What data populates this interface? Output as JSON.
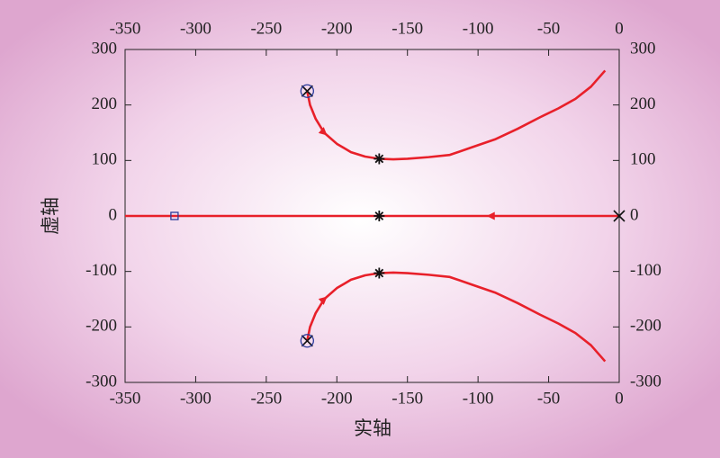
{
  "chart_data": {
    "type": "line",
    "xlabel": "实轴",
    "ylabel": "虚轴",
    "xlim": [
      -350,
      0
    ],
    "ylim": [
      -300,
      300
    ],
    "xticks": [
      -350,
      -300,
      -250,
      -200,
      -150,
      -100,
      -50,
      0
    ],
    "yticks": [
      -300,
      -200,
      -100,
      0,
      100,
      200,
      300
    ],
    "series": [
      {
        "color": "#e8202a",
        "line": true,
        "arrow": true,
        "x": [
          -221,
          -219,
          -215,
          -209,
          -200,
          -190,
          -180,
          -170,
          -160,
          -150,
          -135,
          -120,
          -104,
          -88,
          -72,
          -56,
          -43,
          -31,
          -20,
          -10
        ],
        "values": [
          225,
          200,
          175,
          150,
          130,
          115,
          107,
          103,
          102,
          103,
          106,
          110,
          124,
          138,
          157,
          178,
          194,
          211,
          233,
          262
        ]
      },
      {
        "color": "#e8202a",
        "line": true,
        "arrow": true,
        "x": [
          -221,
          -219,
          -215,
          -209,
          -200,
          -190,
          -180,
          -170,
          -160,
          -150,
          -135,
          -120,
          -104,
          -88,
          -72,
          -56,
          -43,
          -31,
          -20,
          -10
        ],
        "values": [
          -225,
          -200,
          -175,
          -150,
          -130,
          -115,
          -107,
          -103,
          -102,
          -103,
          -106,
          -110,
          -124,
          -138,
          -157,
          -178,
          -194,
          -211,
          -233,
          -262
        ]
      },
      {
        "color": "#e8202a",
        "line": true,
        "arrow": true,
        "x": [
          0,
          -350
        ],
        "values": [
          0,
          0
        ]
      },
      {
        "color": "#111111",
        "line": false,
        "marker": "x",
        "x": [
          -221,
          -221,
          0
        ],
        "values": [
          225,
          -225,
          0
        ]
      },
      {
        "color": "#2a3a9a",
        "line": false,
        "marker": "circle",
        "x": [
          -221,
          -221
        ],
        "values": [
          225,
          -225
        ]
      },
      {
        "color": "#111111",
        "line": false,
        "marker": "star",
        "x": [
          -170,
          -170,
          -170
        ],
        "values": [
          103,
          0,
          -103
        ]
      },
      {
        "color": "#2a3a9a",
        "line": false,
        "marker": "square",
        "x": [
          -315
        ],
        "values": [
          0
        ]
      }
    ]
  }
}
